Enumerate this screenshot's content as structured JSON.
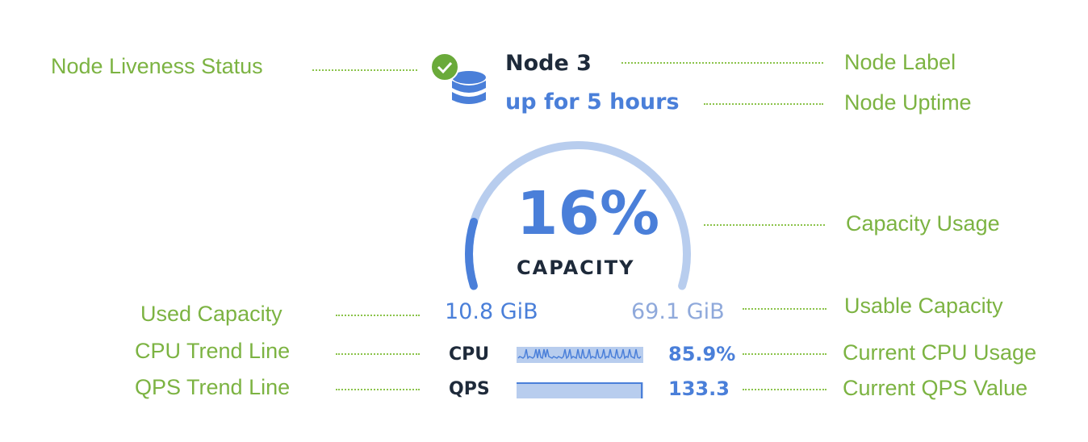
{
  "node": {
    "label": "Node 3",
    "uptime": "up for 5 hours",
    "liveness": "live",
    "icon": "database-icon",
    "status_icon": "check-circle-icon"
  },
  "capacity": {
    "percent_text": "16%",
    "percent": 16,
    "label": "CAPACITY",
    "used": "10.8 GiB",
    "usable": "69.1 GiB"
  },
  "cpu": {
    "label": "CPU",
    "value": "85.9%"
  },
  "qps": {
    "label": "QPS",
    "value": "133.3"
  },
  "annotations": {
    "liveness": "Node Liveness Status",
    "node_label": "Node Label",
    "uptime": "Node Uptime",
    "capacity_usage": "Capacity Usage",
    "used_capacity": "Used Capacity",
    "usable_capacity": "Usable Capacity",
    "cpu_trend": "CPU Trend Line",
    "cpu_current": "Current CPU Usage",
    "qps_trend": "QPS Trend Line",
    "qps_current": "Current QPS Value"
  },
  "colors": {
    "accent": "#4a7fd9",
    "track": "#b8cdee",
    "annotation": "#7cb342",
    "live": "#6aaa3a"
  }
}
